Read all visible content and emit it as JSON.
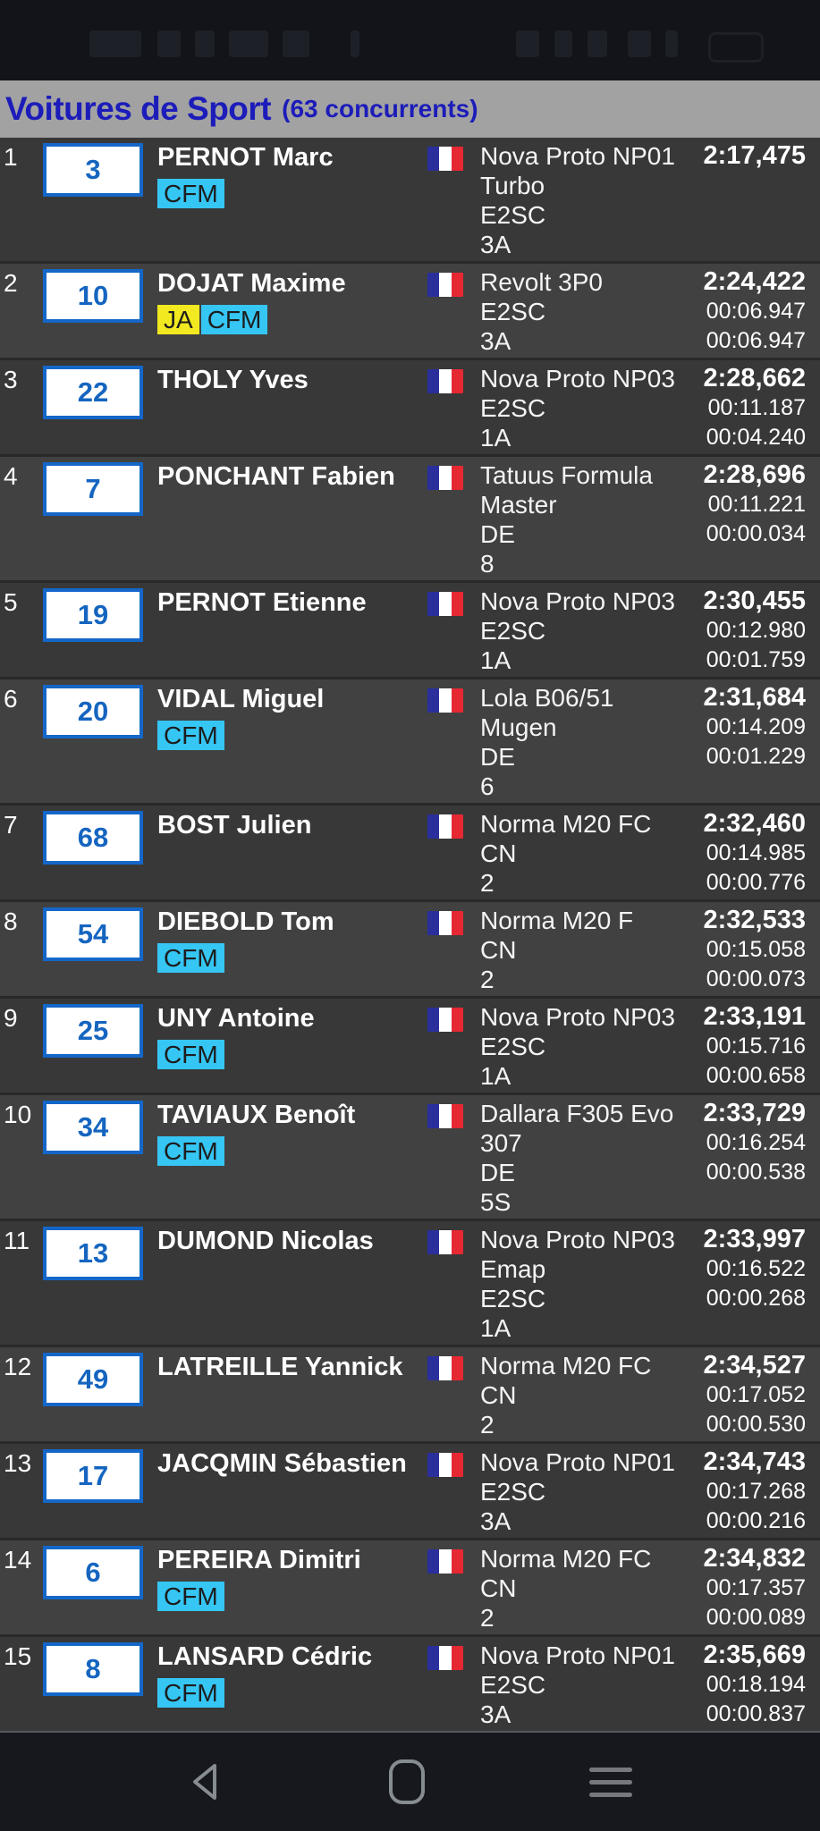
{
  "header": {
    "title": "Voitures de Sport",
    "count": "(63 concurrents)"
  },
  "colors": {
    "header_bg": "#a2a2a2",
    "header_text": "#1c1cba",
    "row_odd": "#383838",
    "row_even": "#414141",
    "numbox_border": "#1467c8",
    "numbox_text": "#1565c0",
    "flag_blue": "#2a2f9c",
    "flag_white": "#ffffff",
    "flag_red": "#e62833"
  },
  "badge_colors": {
    "CFM": "#35c6f4",
    "JA": "#f2e920"
  },
  "rows": [
    {
      "pos": "1",
      "num": "3",
      "name": "PERNOT Marc",
      "badges": [
        "CFM"
      ],
      "flag": "fr",
      "car_lines": [
        "Nova Proto NP01",
        "Turbo"
      ],
      "group": "E2SC",
      "class": "3A",
      "times": [
        "2:17,475"
      ]
    },
    {
      "pos": "2",
      "num": "10",
      "name": "DOJAT Maxime",
      "badges": [
        "JA",
        "CFM"
      ],
      "flag": "fr",
      "car_lines": [
        "Revolt 3P0"
      ],
      "group": "E2SC",
      "class": "3A",
      "times": [
        "2:24,422",
        "00:06.947",
        "00:06.947"
      ]
    },
    {
      "pos": "3",
      "num": "22",
      "name": "THOLY Yves",
      "badges": [],
      "flag": "fr",
      "car_lines": [
        "Nova Proto NP03"
      ],
      "group": "E2SC",
      "class": "1A",
      "times": [
        "2:28,662",
        "00:11.187",
        "00:04.240"
      ]
    },
    {
      "pos": "4",
      "num": "7",
      "name": "PONCHANT Fabien",
      "badges": [],
      "flag": "fr",
      "car_lines": [
        "Tatuus Formula",
        "Master"
      ],
      "group": "DE",
      "class": "8",
      "times": [
        "2:28,696",
        "00:11.221",
        "00:00.034"
      ]
    },
    {
      "pos": "5",
      "num": "19",
      "name": "PERNOT Etienne",
      "badges": [],
      "flag": "fr",
      "car_lines": [
        "Nova Proto NP03"
      ],
      "group": "E2SC",
      "class": "1A",
      "times": [
        "2:30,455",
        "00:12.980",
        "00:01.759"
      ]
    },
    {
      "pos": "6",
      "num": "20",
      "name": "VIDAL Miguel",
      "badges": [
        "CFM"
      ],
      "flag": "fr",
      "car_lines": [
        "Lola B06/51",
        "Mugen"
      ],
      "group": "DE",
      "class": "6",
      "times": [
        "2:31,684",
        "00:14.209",
        "00:01.229"
      ]
    },
    {
      "pos": "7",
      "num": "68",
      "name": "BOST Julien",
      "badges": [],
      "flag": "fr",
      "car_lines": [
        "Norma M20 FC"
      ],
      "group": "CN",
      "class": "2",
      "times": [
        "2:32,460",
        "00:14.985",
        "00:00.776"
      ]
    },
    {
      "pos": "8",
      "num": "54",
      "name": "DIEBOLD Tom",
      "badges": [
        "CFM"
      ],
      "flag": "fr",
      "car_lines": [
        "Norma M20 F"
      ],
      "group": "CN",
      "class": "2",
      "times": [
        "2:32,533",
        "00:15.058",
        "00:00.073"
      ]
    },
    {
      "pos": "9",
      "num": "25",
      "name": "UNY Antoine",
      "badges": [
        "CFM"
      ],
      "flag": "fr",
      "car_lines": [
        "Nova Proto NP03"
      ],
      "group": "E2SC",
      "class": "1A",
      "times": [
        "2:33,191",
        "00:15.716",
        "00:00.658"
      ]
    },
    {
      "pos": "10",
      "num": "34",
      "name": "TAVIAUX Benoît",
      "badges": [
        "CFM"
      ],
      "flag": "fr",
      "car_lines": [
        "Dallara F305 Evo",
        "307"
      ],
      "group": "DE",
      "class": "5S",
      "times": [
        "2:33,729",
        "00:16.254",
        "00:00.538"
      ]
    },
    {
      "pos": "11",
      "num": "13",
      "name": "DUMOND Nicolas",
      "badges": [],
      "flag": "fr",
      "car_lines": [
        "Nova Proto NP03",
        "Emap"
      ],
      "group": "E2SC",
      "class": "1A",
      "times": [
        "2:33,997",
        "00:16.522",
        "00:00.268"
      ]
    },
    {
      "pos": "12",
      "num": "49",
      "name": "LATREILLE Yannick",
      "badges": [],
      "flag": "fr",
      "car_lines": [
        "Norma M20 FC"
      ],
      "group": "CN",
      "class": "2",
      "times": [
        "2:34,527",
        "00:17.052",
        "00:00.530"
      ]
    },
    {
      "pos": "13",
      "num": "17",
      "name": "JACQMIN Sébastien",
      "badges": [],
      "flag": "fr",
      "car_lines": [
        "Nova Proto NP01"
      ],
      "group": "E2SC",
      "class": "3A",
      "times": [
        "2:34,743",
        "00:17.268",
        "00:00.216"
      ]
    },
    {
      "pos": "14",
      "num": "6",
      "name": "PEREIRA Dimitri",
      "badges": [
        "CFM"
      ],
      "flag": "fr",
      "car_lines": [
        "Norma M20 FC"
      ],
      "group": "CN",
      "class": "2",
      "times": [
        "2:34,832",
        "00:17.357",
        "00:00.089"
      ]
    },
    {
      "pos": "15",
      "num": "8",
      "name": "LANSARD Cédric",
      "badges": [
        "CFM"
      ],
      "flag": "fr",
      "car_lines": [
        "Nova Proto NP01"
      ],
      "group": "E2SC",
      "class": "3A",
      "times": [
        "2:35,669",
        "00:18.194",
        "00:00.837"
      ]
    }
  ],
  "status_bar": {
    "left_icons": [
      "clock-blob",
      "notification-icon-1",
      "notification-icon-2",
      "notification-icon-3",
      "notification-icon-4",
      "dot"
    ],
    "right_icons": [
      "status-icon-1",
      "status-icon-2",
      "status-icon-3",
      "status-icon-4",
      "status-icon-5",
      "battery-icon"
    ]
  },
  "navbar": {
    "icons": [
      "back",
      "home",
      "menu"
    ]
  }
}
